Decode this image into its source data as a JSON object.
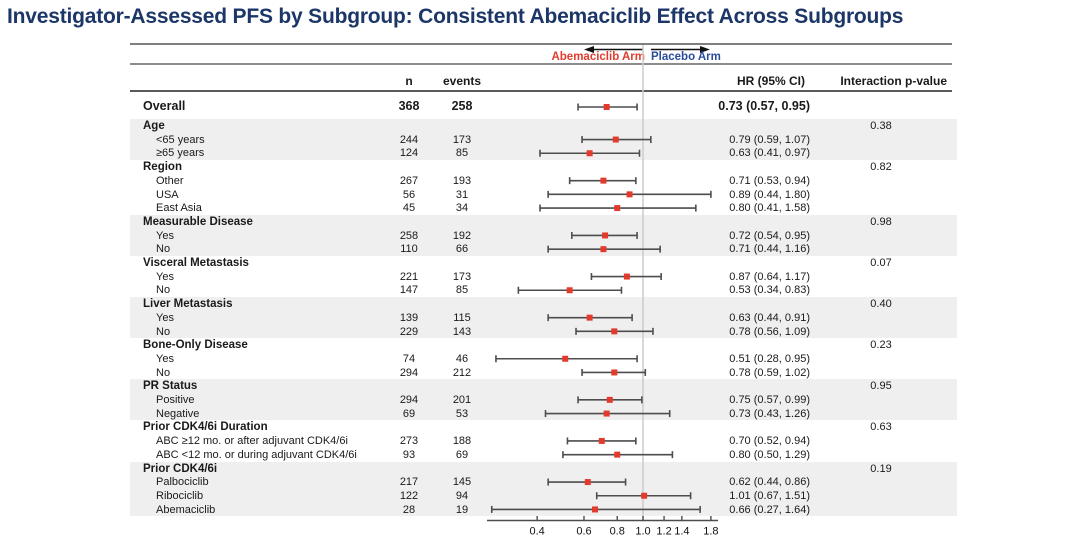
{
  "title": "Investigator-Assessed PFS by Subgroup: Consistent Abemaciclib Effect Across Subgroups",
  "arms": {
    "left_label": "Abemaciclib Arm",
    "right_label": "Placebo Arm"
  },
  "columns": {
    "n": "n",
    "events": "events",
    "hr": "HR (95% CI)",
    "interaction": "Interaction p-value"
  },
  "colors": {
    "title": "#1c3668",
    "abemaciclib_arm": "#e23b2e",
    "placebo_arm": "#2a4d9b",
    "marker": "#e23b2e",
    "whisker": "#4d4d4d",
    "band": "#efefef",
    "rule": "#7f7f7f",
    "axis": "#4d4d4d",
    "reference_line": "#cccccc",
    "text": "#1a1a1a"
  },
  "chart_data": {
    "type": "forest",
    "scale": "log10",
    "xticks": [
      0.4,
      0.6,
      0.8,
      1.0,
      1.2,
      1.4,
      1.8
    ],
    "tick_labels": [
      "0.4",
      "0.6",
      "0.8",
      "1.0",
      "1.2",
      "1.4",
      "1.8"
    ],
    "reference_line": 1.0,
    "overall": {
      "label": "Overall",
      "n": 368,
      "events": 258,
      "hr": 0.73,
      "lo": 0.57,
      "hi": 0.95
    },
    "sections": [
      {
        "label": "Age",
        "p": "0.38",
        "shaded": true,
        "rows": [
          {
            "label": "<65 years",
            "n": 244,
            "events": 173,
            "hr": 0.79,
            "lo": 0.59,
            "hi": 1.07
          },
          {
            "label": "≥65 years",
            "n": 124,
            "events": 85,
            "hr": 0.63,
            "lo": 0.41,
            "hi": 0.97
          }
        ]
      },
      {
        "label": "Region",
        "p": "0.82",
        "shaded": false,
        "rows": [
          {
            "label": "Other",
            "n": 267,
            "events": 193,
            "hr": 0.71,
            "lo": 0.53,
            "hi": 0.94
          },
          {
            "label": "USA",
            "n": 56,
            "events": 31,
            "hr": 0.89,
            "lo": 0.44,
            "hi": 1.8
          },
          {
            "label": "East Asia",
            "n": 45,
            "events": 34,
            "hr": 0.8,
            "lo": 0.41,
            "hi": 1.58
          }
        ]
      },
      {
        "label": "Measurable Disease",
        "p": "0.98",
        "shaded": true,
        "rows": [
          {
            "label": "Yes",
            "n": 258,
            "events": 192,
            "hr": 0.72,
            "lo": 0.54,
            "hi": 0.95
          },
          {
            "label": "No",
            "n": 110,
            "events": 66,
            "hr": 0.71,
            "lo": 0.44,
            "hi": 1.16
          }
        ]
      },
      {
        "label": "Visceral Metastasis",
        "p": "0.07",
        "shaded": false,
        "rows": [
          {
            "label": "Yes",
            "n": 221,
            "events": 173,
            "hr": 0.87,
            "lo": 0.64,
            "hi": 1.17
          },
          {
            "label": "No",
            "n": 147,
            "events": 85,
            "hr": 0.53,
            "lo": 0.34,
            "hi": 0.83
          }
        ]
      },
      {
        "label": "Liver Metastasis",
        "p": "0.40",
        "shaded": true,
        "rows": [
          {
            "label": "Yes",
            "n": 139,
            "events": 115,
            "hr": 0.63,
            "lo": 0.44,
            "hi": 0.91
          },
          {
            "label": "No",
            "n": 229,
            "events": 143,
            "hr": 0.78,
            "lo": 0.56,
            "hi": 1.09
          }
        ]
      },
      {
        "label": "Bone-Only Disease",
        "p": "0.23",
        "shaded": false,
        "rows": [
          {
            "label": "Yes",
            "n": 74,
            "events": 46,
            "hr": 0.51,
            "lo": 0.28,
            "hi": 0.95
          },
          {
            "label": "No",
            "n": 294,
            "events": 212,
            "hr": 0.78,
            "lo": 0.59,
            "hi": 1.02
          }
        ]
      },
      {
        "label": "PR Status",
        "p": "0.95",
        "shaded": true,
        "rows": [
          {
            "label": "Positive",
            "n": 294,
            "events": 201,
            "hr": 0.75,
            "lo": 0.57,
            "hi": 0.99
          },
          {
            "label": "Negative",
            "n": 69,
            "events": 53,
            "hr": 0.73,
            "lo": 0.43,
            "hi": 1.26
          }
        ]
      },
      {
        "label": "Prior CDK4/6i Duration",
        "p": "0.63",
        "shaded": false,
        "rows": [
          {
            "label": "ABC ≥12 mo. or after adjuvant CDK4/6i",
            "n": 273,
            "events": 188,
            "hr": 0.7,
            "lo": 0.52,
            "hi": 0.94
          },
          {
            "label": "ABC <12 mo. or during adjuvant CDK4/6i",
            "n": 93,
            "events": 69,
            "hr": 0.8,
            "lo": 0.5,
            "hi": 1.29
          }
        ]
      },
      {
        "label": "Prior CDK4/6i",
        "p": "0.19",
        "shaded": true,
        "rows": [
          {
            "label": "Palbociclib",
            "n": 217,
            "events": 145,
            "hr": 0.62,
            "lo": 0.44,
            "hi": 0.86
          },
          {
            "label": "Ribociclib",
            "n": 122,
            "events": 94,
            "hr": 1.01,
            "lo": 0.67,
            "hi": 1.51
          },
          {
            "label": "Abemaciclib",
            "n": 28,
            "events": 19,
            "hr": 0.66,
            "lo": 0.27,
            "hi": 1.64
          }
        ]
      }
    ]
  }
}
